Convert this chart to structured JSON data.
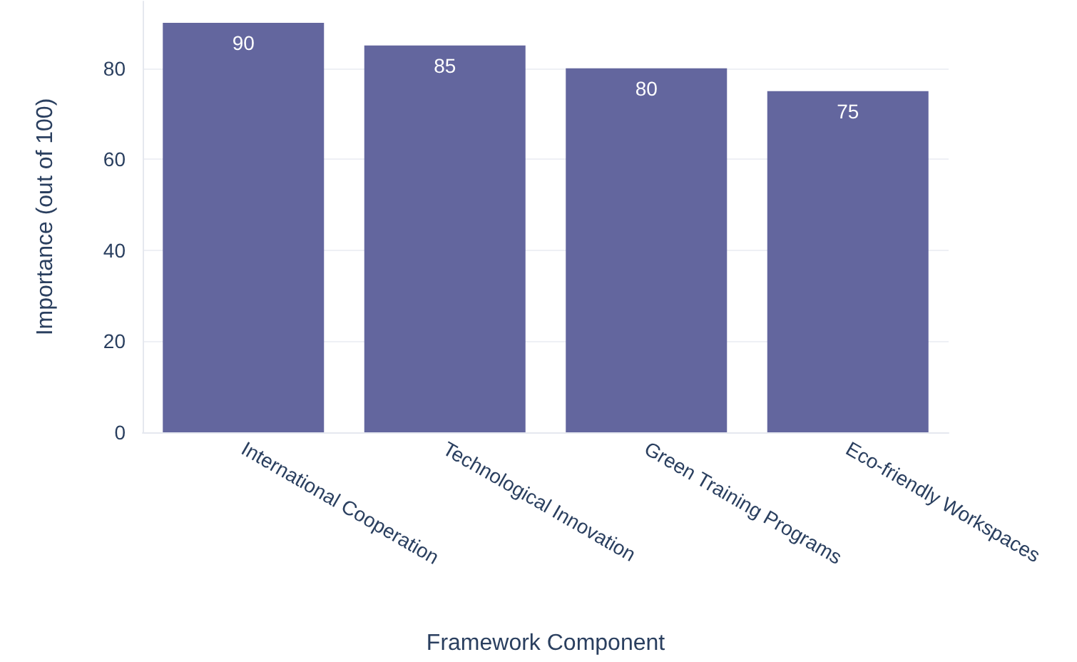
{
  "chart_data": {
    "type": "bar",
    "categories": [
      "International Cooperation",
      "Technological Innovation",
      "Green Training Programs",
      "Eco-friendly Workspaces"
    ],
    "values": [
      90,
      85,
      80,
      75
    ],
    "color": "#63669e",
    "xlabel": "Framework Component",
    "ylabel": "Importance (out of 100)",
    "ylim": [
      0,
      94.7
    ],
    "yticks": [
      0,
      20,
      40,
      60,
      80
    ],
    "grid": "y",
    "data_labels": true
  }
}
